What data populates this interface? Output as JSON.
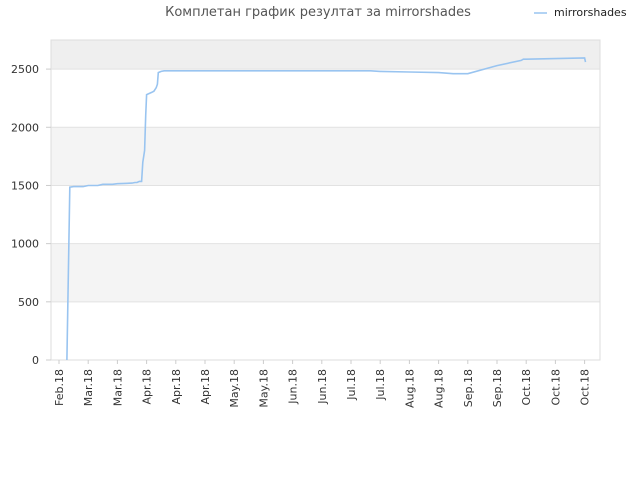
{
  "chart_data": {
    "type": "line",
    "title": "Комплетан график резултат за mirrorshades",
    "xlabel": "",
    "ylabel": "",
    "ylim": [
      0,
      2750
    ],
    "y_ticks": [
      0,
      500,
      1000,
      1500,
      2000,
      2500
    ],
    "y_tick_labels": [
      "0",
      "500",
      "1000",
      "1500",
      "2000",
      "2500"
    ],
    "x_tick_labels": [
      "Feb.18",
      "Mar.18",
      "Mar.18",
      "Apr.18",
      "Apr.18",
      "Apr.18",
      "May.18",
      "May.18",
      "Jun.18",
      "Jun.18",
      "Jul.18",
      "Jul.18",
      "Aug.18",
      "Aug.18",
      "Sep.18",
      "Sep.18",
      "Oct.18",
      "Oct.18",
      "Oct.18"
    ],
    "grid": true,
    "alternating_bands": true,
    "legend_position": "top-right",
    "series": [
      {
        "name": "mirrorshades",
        "color": "#99c4f0",
        "x": [
          0.27,
          0.37,
          0.37,
          0.5,
          0.83,
          1.0,
          1.33,
          1.5,
          1.83,
          2.0,
          2.5,
          2.6,
          2.67,
          2.75,
          2.83,
          2.87,
          2.9,
          2.93,
          2.97,
          3.0,
          3.17,
          3.25,
          3.33,
          3.37,
          3.4,
          3.5,
          3.6,
          5.0,
          6.0,
          7.0,
          8.0,
          9.0,
          10.0,
          10.67,
          11.0,
          12.0,
          13.0,
          13.5,
          14.0,
          15.0,
          15.83,
          15.9,
          16.0,
          17.0,
          18.0,
          18.03
        ],
        "y": [
          0,
          1480,
          1485,
          1490,
          1490,
          1500,
          1500,
          1510,
          1510,
          1515,
          1520,
          1525,
          1525,
          1535,
          1535,
          1700,
          1750,
          1800,
          2100,
          2280,
          2300,
          2310,
          2340,
          2370,
          2470,
          2480,
          2485,
          2485,
          2485,
          2485,
          2485,
          2485,
          2485,
          2485,
          2480,
          2475,
          2470,
          2460,
          2460,
          2530,
          2575,
          2585,
          2585,
          2590,
          2595,
          2560
        ]
      }
    ]
  }
}
